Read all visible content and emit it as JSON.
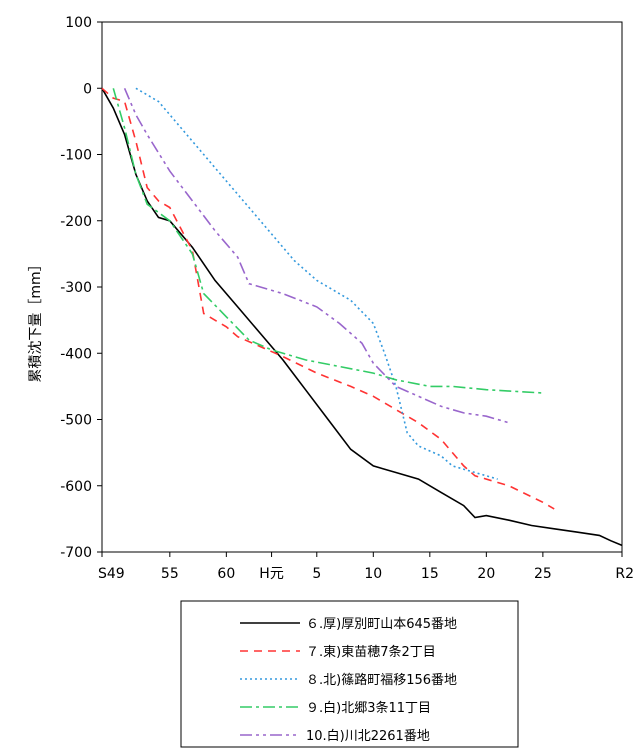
{
  "chart_data": {
    "type": "line",
    "title": "",
    "xlabel": "",
    "ylabel": "累積沈下量［mm］",
    "ylim": [
      -700,
      100
    ],
    "yticks": [
      100,
      0,
      -100,
      -200,
      -300,
      -400,
      -500,
      -600,
      -700
    ],
    "xlim": [
      1974,
      2020
    ],
    "xticks": [
      {
        "x": 1974,
        "label": "S49"
      },
      {
        "x": 1980,
        "label": "55"
      },
      {
        "x": 1985,
        "label": "60"
      },
      {
        "x": 1989,
        "label": "H元"
      },
      {
        "x": 1993,
        "label": "5"
      },
      {
        "x": 1998,
        "label": "10"
      },
      {
        "x": 2003,
        "label": "15"
      },
      {
        "x": 2008,
        "label": "20"
      },
      {
        "x": 2013,
        "label": "25"
      },
      {
        "x": 2020,
        "label": "R2"
      }
    ],
    "grid": false,
    "legend_position": "bottom",
    "series": [
      {
        "name": "６.厚)厚別町山本645番地",
        "color": "#000000",
        "dash": "solid",
        "points": [
          [
            1974,
            0
          ],
          [
            1975,
            -30
          ],
          [
            1976,
            -70
          ],
          [
            1977,
            -130
          ],
          [
            1978,
            -170
          ],
          [
            1979,
            -195
          ],
          [
            1980,
            -200
          ],
          [
            1982,
            -240
          ],
          [
            1984,
            -290
          ],
          [
            1986,
            -330
          ],
          [
            1988,
            -370
          ],
          [
            1990,
            -410
          ],
          [
            1992,
            -455
          ],
          [
            1994,
            -500
          ],
          [
            1996,
            -545
          ],
          [
            1998,
            -570
          ],
          [
            2000,
            -580
          ],
          [
            2002,
            -590
          ],
          [
            2004,
            -610
          ],
          [
            2006,
            -630
          ],
          [
            2007,
            -648
          ],
          [
            2008,
            -645
          ],
          [
            2010,
            -652
          ],
          [
            2012,
            -660
          ],
          [
            2014,
            -665
          ],
          [
            2016,
            -670
          ],
          [
            2018,
            -675
          ],
          [
            2019,
            -683
          ],
          [
            2020,
            -690
          ]
        ]
      },
      {
        "name": "７.東)東苗穂7条2丁目",
        "color": "#ff3333",
        "dash": "8,6",
        "points": [
          [
            1974,
            0
          ],
          [
            1975,
            -15
          ],
          [
            1976,
            -20
          ],
          [
            1977,
            -80
          ],
          [
            1978,
            -150
          ],
          [
            1979,
            -170
          ],
          [
            1980,
            -180
          ],
          [
            1982,
            -245
          ],
          [
            1983,
            -340
          ],
          [
            1985,
            -360
          ],
          [
            1986,
            -375
          ],
          [
            1988,
            -390
          ],
          [
            1990,
            -405
          ],
          [
            1993,
            -430
          ],
          [
            1996,
            -450
          ],
          [
            1998,
            -465
          ],
          [
            2000,
            -485
          ],
          [
            2002,
            -505
          ],
          [
            2004,
            -530
          ],
          [
            2005,
            -550
          ],
          [
            2006,
            -570
          ],
          [
            2007,
            -585
          ],
          [
            2010,
            -600
          ],
          [
            2013,
            -625
          ],
          [
            2014,
            -635
          ]
        ]
      },
      {
        "name": "８.北)篠路町福移156番地",
        "color": "#3399dd",
        "dash": "2,3",
        "points": [
          [
            1977,
            0
          ],
          [
            1979,
            -20
          ],
          [
            1981,
            -60
          ],
          [
            1983,
            -100
          ],
          [
            1985,
            -140
          ],
          [
            1987,
            -180
          ],
          [
            1989,
            -220
          ],
          [
            1991,
            -260
          ],
          [
            1993,
            -290
          ],
          [
            1996,
            -320
          ],
          [
            1998,
            -355
          ],
          [
            1999,
            -400
          ],
          [
            2000,
            -450
          ],
          [
            2001,
            -520
          ],
          [
            2002,
            -540
          ],
          [
            2004,
            -555
          ],
          [
            2005,
            -570
          ],
          [
            2007,
            -580
          ],
          [
            2009,
            -590
          ]
        ]
      },
      {
        "name": "９.白)北郷3条11丁目",
        "color": "#33cc66",
        "dash": "12,4,3,4",
        "points": [
          [
            1975,
            0
          ],
          [
            1976,
            -60
          ],
          [
            1977,
            -130
          ],
          [
            1978,
            -175
          ],
          [
            1980,
            -200
          ],
          [
            1982,
            -250
          ],
          [
            1983,
            -310
          ],
          [
            1985,
            -345
          ],
          [
            1987,
            -380
          ],
          [
            1989,
            -395
          ],
          [
            1992,
            -410
          ],
          [
            1995,
            -420
          ],
          [
            1998,
            -430
          ],
          [
            2000,
            -440
          ],
          [
            2003,
            -450
          ],
          [
            2005,
            -450
          ],
          [
            2008,
            -455
          ],
          [
            2013,
            -460
          ]
        ]
      },
      {
        "name": "10.白)川北2261番地",
        "color": "#9966cc",
        "dash": "12,4,3,4,3,4",
        "points": [
          [
            1976,
            0
          ],
          [
            1977,
            -40
          ],
          [
            1978,
            -70
          ],
          [
            1980,
            -125
          ],
          [
            1982,
            -170
          ],
          [
            1984,
            -215
          ],
          [
            1986,
            -255
          ],
          [
            1987,
            -295
          ],
          [
            1990,
            -310
          ],
          [
            1993,
            -330
          ],
          [
            1995,
            -355
          ],
          [
            1997,
            -385
          ],
          [
            1998,
            -415
          ],
          [
            2000,
            -450
          ],
          [
            2002,
            -465
          ],
          [
            2004,
            -480
          ],
          [
            2006,
            -490
          ],
          [
            2008,
            -495
          ],
          [
            2010,
            -505
          ]
        ]
      }
    ]
  }
}
